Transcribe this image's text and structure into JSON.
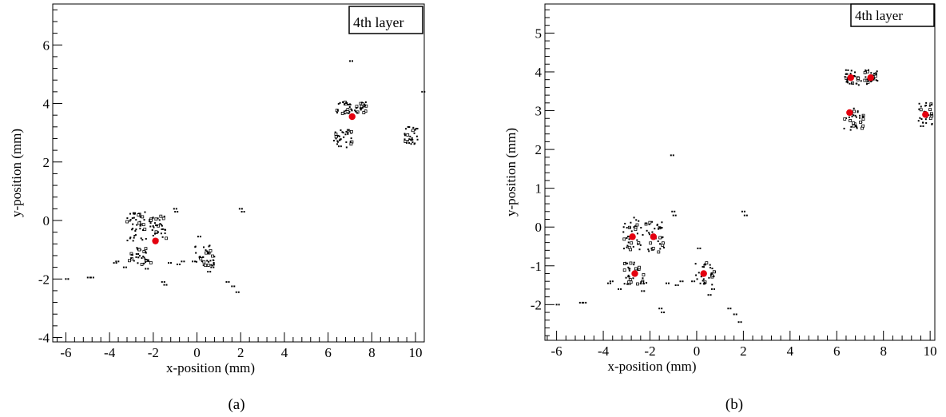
{
  "chart_data": [
    {
      "type": "scatter",
      "panel_label": "(a)",
      "legend_text": "4th layer",
      "xlabel": "x-position (mm)",
      "ylabel": "y-position (mm)",
      "xlim": [
        -6.6,
        10.4
      ],
      "ylim": [
        -4.15,
        7.4
      ],
      "xticks": [
        -6,
        -4,
        -2,
        0,
        2,
        4,
        6,
        8,
        10
      ],
      "yticks": [
        -4,
        -2,
        0,
        2,
        4,
        6
      ],
      "grid": false,
      "series": [
        {
          "marker": "hit",
          "color": "#000000",
          "clusters": [
            {
              "cx": -2.75,
              "cy": -0.2,
              "w": 0.9,
              "h": 1.0
            },
            {
              "cx": -2.6,
              "cy": -1.2,
              "w": 1.0,
              "h": 0.6
            },
            {
              "cx": -1.75,
              "cy": -0.25,
              "w": 0.8,
              "h": 0.9
            },
            {
              "cx": 0.35,
              "cy": -1.2,
              "w": 0.9,
              "h": 0.7
            },
            {
              "cx": 6.7,
              "cy": 3.85,
              "w": 0.8,
              "h": 0.4
            },
            {
              "cx": 7.45,
              "cy": 3.85,
              "w": 0.6,
              "h": 0.4
            },
            {
              "cx": 6.7,
              "cy": 2.8,
              "w": 0.9,
              "h": 0.6
            },
            {
              "cx": 9.8,
              "cy": 2.9,
              "w": 0.6,
              "h": 0.6
            }
          ],
          "x": [
            -6.0,
            -5.0,
            -4.85,
            -3.8,
            -3.7,
            -3.35,
            -2.35,
            -1.3,
            -1.05,
            -1.0,
            -0.9,
            -0.7,
            -0.2,
            0.05,
            0.65,
            1.35,
            1.6,
            1.8,
            1.95,
            2.05,
            7.0,
            10.3,
            9.6,
            0.5,
            -1.6,
            -1.5
          ],
          "y": [
            -2.0,
            -1.95,
            -1.95,
            -1.45,
            -1.4,
            -1.6,
            -1.65,
            -1.45,
            0.4,
            0.3,
            -1.5,
            -1.4,
            -1.4,
            -0.55,
            -1.6,
            -2.1,
            -2.25,
            -2.45,
            0.4,
            0.3,
            5.45,
            4.4,
            2.65,
            -1.75,
            -2.1,
            -2.2
          ]
        },
        {
          "marker": "reconstructed-center",
          "color": "#e4000f",
          "x": [
            -1.9,
            7.1
          ],
          "y": [
            -0.7,
            3.55
          ]
        }
      ]
    },
    {
      "type": "scatter",
      "panel_label": "(b)",
      "legend_text": "4th layer",
      "xlabel": "x-position (mm)",
      "ylabel": "y-position (mm)",
      "xlim": [
        -6.5,
        10.2
      ],
      "ylim": [
        -2.92,
        5.75
      ],
      "xticks": [
        -6,
        -4,
        -2,
        0,
        2,
        4,
        6,
        8,
        10
      ],
      "yticks": [
        -2,
        -1,
        0,
        1,
        2,
        3,
        4,
        5
      ],
      "grid": false,
      "series": [
        {
          "marker": "hit",
          "color": "#000000",
          "clusters": [
            {
              "cx": -2.75,
              "cy": -0.2,
              "w": 0.9,
              "h": 0.9
            },
            {
              "cx": -2.6,
              "cy": -1.2,
              "w": 1.0,
              "h": 0.6
            },
            {
              "cx": -1.8,
              "cy": -0.25,
              "w": 0.8,
              "h": 0.8
            },
            {
              "cx": 0.35,
              "cy": -1.2,
              "w": 0.9,
              "h": 0.6
            },
            {
              "cx": 6.65,
              "cy": 3.85,
              "w": 0.8,
              "h": 0.4
            },
            {
              "cx": 7.45,
              "cy": 3.85,
              "w": 0.6,
              "h": 0.4
            },
            {
              "cx": 6.7,
              "cy": 2.8,
              "w": 0.9,
              "h": 0.6
            },
            {
              "cx": 9.8,
              "cy": 2.9,
              "w": 0.6,
              "h": 0.6
            }
          ],
          "x": [
            -6.0,
            -5.0,
            -4.85,
            -3.8,
            -3.7,
            -3.35,
            -2.35,
            -1.3,
            -1.05,
            -1.0,
            -0.9,
            -0.7,
            -0.2,
            0.05,
            0.65,
            1.35,
            1.6,
            1.8,
            1.95,
            2.05,
            7.0,
            9.6,
            0.5,
            -1.6,
            -1.5,
            -1.1
          ],
          "y": [
            -2.0,
            -1.95,
            -1.95,
            -1.45,
            -1.4,
            -1.6,
            -1.65,
            -1.45,
            0.4,
            0.3,
            -1.5,
            -1.4,
            -1.4,
            -0.55,
            -1.6,
            -2.1,
            -2.25,
            -2.45,
            0.4,
            0.3,
            5.45,
            2.6,
            -1.75,
            -2.1,
            -2.2,
            1.85
          ]
        },
        {
          "marker": "reconstructed-center",
          "color": "#e4000f",
          "x": [
            -2.75,
            -1.85,
            -2.65,
            0.3,
            6.6,
            7.45,
            6.55,
            9.8
          ],
          "y": [
            -0.25,
            -0.25,
            -1.2,
            -1.2,
            3.85,
            3.85,
            2.95,
            2.9
          ]
        }
      ]
    }
  ]
}
